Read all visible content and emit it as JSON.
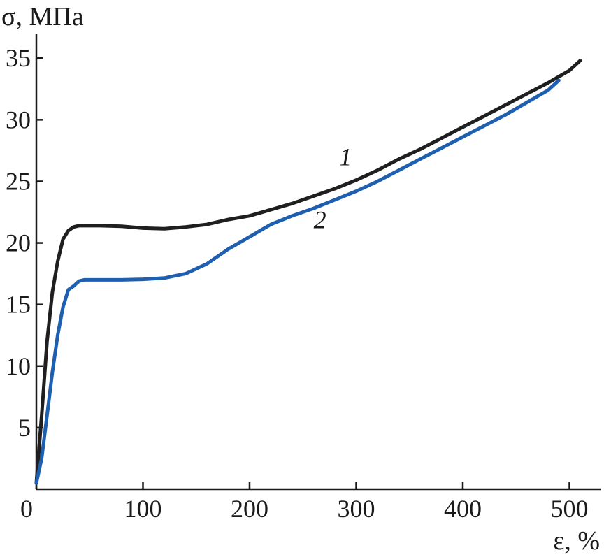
{
  "chart_data": {
    "type": "line",
    "title": "",
    "ylabel": "σ, МПа",
    "xlabel": "ε, %",
    "xlim": [
      0,
      520
    ],
    "ylim": [
      0,
      37
    ],
    "x_ticks": [
      0,
      100,
      200,
      300,
      400,
      500
    ],
    "y_ticks": [
      5,
      10,
      15,
      20,
      25,
      30,
      35
    ],
    "grid": false,
    "series": [
      {
        "name": "1",
        "color": "#1f1f1f",
        "points": [
          [
            0,
            0.5
          ],
          [
            5,
            6
          ],
          [
            10,
            12
          ],
          [
            15,
            16
          ],
          [
            20,
            18.5
          ],
          [
            25,
            20.3
          ],
          [
            30,
            21.0
          ],
          [
            35,
            21.3
          ],
          [
            40,
            21.4
          ],
          [
            60,
            21.4
          ],
          [
            80,
            21.35
          ],
          [
            100,
            21.2
          ],
          [
            120,
            21.15
          ],
          [
            140,
            21.3
          ],
          [
            160,
            21.5
          ],
          [
            180,
            21.9
          ],
          [
            200,
            22.2
          ],
          [
            220,
            22.7
          ],
          [
            240,
            23.2
          ],
          [
            260,
            23.8
          ],
          [
            280,
            24.4
          ],
          [
            300,
            25.1
          ],
          [
            320,
            25.9
          ],
          [
            340,
            26.8
          ],
          [
            360,
            27.6
          ],
          [
            380,
            28.5
          ],
          [
            400,
            29.4
          ],
          [
            420,
            30.3
          ],
          [
            440,
            31.2
          ],
          [
            460,
            32.1
          ],
          [
            480,
            33.0
          ],
          [
            500,
            34.0
          ],
          [
            510,
            34.8
          ]
        ]
      },
      {
        "name": "2",
        "color": "#1f5fb0",
        "points": [
          [
            0,
            0.5
          ],
          [
            5,
            2.5
          ],
          [
            10,
            6
          ],
          [
            15,
            9.5
          ],
          [
            20,
            12.5
          ],
          [
            25,
            14.8
          ],
          [
            30,
            16.2
          ],
          [
            35,
            16.5
          ],
          [
            40,
            16.9
          ],
          [
            45,
            17.0
          ],
          [
            60,
            17.0
          ],
          [
            80,
            17.0
          ],
          [
            100,
            17.05
          ],
          [
            120,
            17.15
          ],
          [
            140,
            17.5
          ],
          [
            160,
            18.3
          ],
          [
            180,
            19.5
          ],
          [
            200,
            20.5
          ],
          [
            220,
            21.5
          ],
          [
            240,
            22.2
          ],
          [
            260,
            22.8
          ],
          [
            280,
            23.5
          ],
          [
            300,
            24.2
          ],
          [
            320,
            25.0
          ],
          [
            340,
            25.9
          ],
          [
            360,
            26.8
          ],
          [
            380,
            27.7
          ],
          [
            400,
            28.6
          ],
          [
            420,
            29.5
          ],
          [
            440,
            30.4
          ],
          [
            460,
            31.4
          ],
          [
            480,
            32.4
          ],
          [
            490,
            33.2
          ]
        ]
      }
    ],
    "annotations": [
      {
        "text": "1",
        "x": 290,
        "y": 26.3,
        "series": "1"
      },
      {
        "text": "2",
        "x": 266,
        "y": 21.2,
        "series": "2"
      }
    ]
  }
}
